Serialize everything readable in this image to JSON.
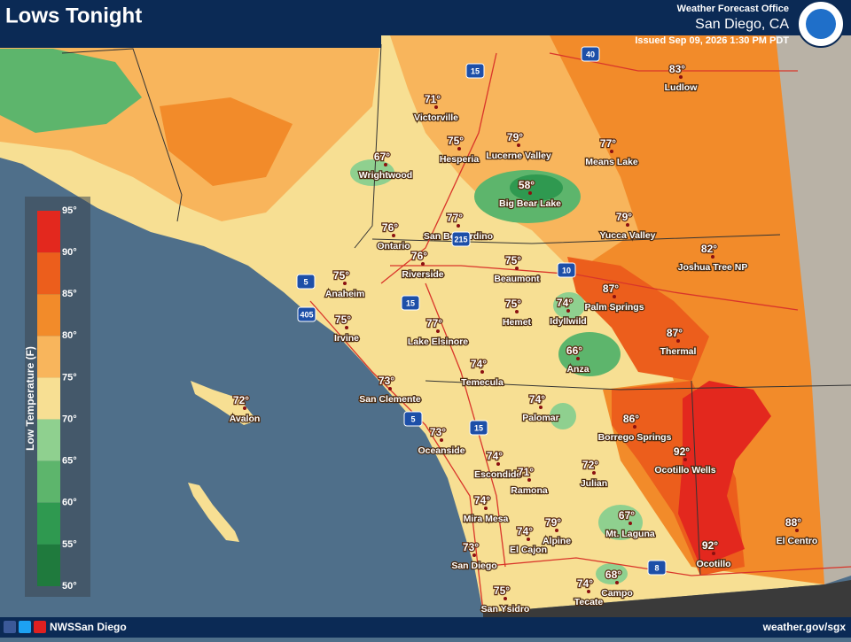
{
  "header": {
    "title": "Lows Tonight",
    "office": "Weather Forecast Office",
    "location": "San Diego, CA",
    "issued": "Issued Sep 09, 2026 1:30 PM PDT"
  },
  "legend": {
    "title": "Low Temperature (F)",
    "labels": [
      "95°",
      "90°",
      "85°",
      "80°",
      "75°",
      "70°",
      "65°",
      "60°",
      "55°",
      "50°"
    ],
    "colors": [
      "#e3281e",
      "#ec5e1c",
      "#f28b2a",
      "#f8b55c",
      "#f7df93",
      "#8fd08f",
      "#5db56c",
      "#2f9950",
      "#1f7a3d"
    ]
  },
  "cities": [
    {
      "name": "Ludlow",
      "temp": "83°"
    },
    {
      "name": "Victorville",
      "temp": "71°"
    },
    {
      "name": "Hesperia",
      "temp": "75°"
    },
    {
      "name": "Lucerne Valley",
      "temp": "79°"
    },
    {
      "name": "Means Lake",
      "temp": "77°"
    },
    {
      "name": "Wrightwood",
      "temp": "67°"
    },
    {
      "name": "Big Bear Lake",
      "temp": "58°"
    },
    {
      "name": "Ontario",
      "temp": "76°"
    },
    {
      "name": "San Bernardino",
      "temp": "77°"
    },
    {
      "name": "Yucca Valley",
      "temp": "79°"
    },
    {
      "name": "Riverside",
      "temp": "76°"
    },
    {
      "name": "Beaumont",
      "temp": "75°"
    },
    {
      "name": "Joshua Tree NP",
      "temp": "82°"
    },
    {
      "name": "Anaheim",
      "temp": "75°"
    },
    {
      "name": "Palm Springs",
      "temp": "87°"
    },
    {
      "name": "Irvine",
      "temp": "75°"
    },
    {
      "name": "Hemet",
      "temp": "75°"
    },
    {
      "name": "Idyllwild",
      "temp": "74°"
    },
    {
      "name": "Lake Elsinore",
      "temp": "77°"
    },
    {
      "name": "Thermal",
      "temp": "87°"
    },
    {
      "name": "Anza",
      "temp": "66°"
    },
    {
      "name": "Temecula",
      "temp": "74°"
    },
    {
      "name": "San Clemente",
      "temp": "73°"
    },
    {
      "name": "Avalon",
      "temp": "72°"
    },
    {
      "name": "Palomar",
      "temp": "74°"
    },
    {
      "name": "Borrego Springs",
      "temp": "86°"
    },
    {
      "name": "Oceanside",
      "temp": "73°"
    },
    {
      "name": "Ocotillo Wells",
      "temp": "92°"
    },
    {
      "name": "Escondido",
      "temp": "74°"
    },
    {
      "name": "Ramona",
      "temp": "71°"
    },
    {
      "name": "Julian",
      "temp": "72°"
    },
    {
      "name": "Mira Mesa",
      "temp": "74°"
    },
    {
      "name": "Mt. Laguna",
      "temp": "67°"
    },
    {
      "name": "Alpine",
      "temp": "79°"
    },
    {
      "name": "El Cajon",
      "temp": "74°"
    },
    {
      "name": "El Centro",
      "temp": "88°"
    },
    {
      "name": "San Diego",
      "temp": "73°"
    },
    {
      "name": "Ocotillo",
      "temp": "92°"
    },
    {
      "name": "Campo",
      "temp": "68°"
    },
    {
      "name": "Tecate",
      "temp": "74°"
    },
    {
      "name": "San Ysidro",
      "temp": "75°"
    }
  ],
  "highways": [
    "40",
    "15",
    "5",
    "405",
    "215",
    "10",
    "15",
    "5",
    "15",
    "8"
  ],
  "footer": {
    "social": "NWSSan Diego",
    "website": "weather.gov/sgx"
  }
}
